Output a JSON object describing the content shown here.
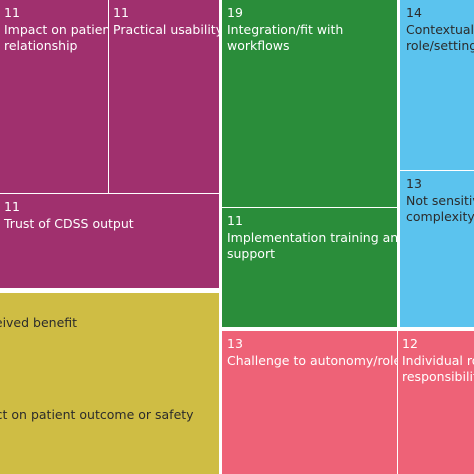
{
  "chart_data": {
    "type": "treemap",
    "title": "",
    "colors": {
      "magenta": "#A0306E",
      "green": "#2A8D3A",
      "sky": "#5BC3EE",
      "olive": "#CFBD44",
      "pink": "#EE6277"
    },
    "tiles": [
      {
        "count": "11",
        "label": "Impact on patient\nrelationship",
        "color": "#A0306E",
        "text": "light"
      },
      {
        "count": "11",
        "label": "Practical usability",
        "color": "#A0306E",
        "text": "light"
      },
      {
        "count": "11",
        "label": "Trust of CDSS output",
        "color": "#A0306E",
        "text": "light"
      },
      {
        "count": "19",
        "label": "Integration/fit with\nworkflows",
        "color": "#2A8D3A",
        "text": "light"
      },
      {
        "count": "11",
        "label": "Implementation training and\nsupport",
        "color": "#2A8D3A",
        "text": "light"
      },
      {
        "count": "14",
        "label": "Contextual f\nrole/setting",
        "color": "#5BC3EE",
        "text": "dark"
      },
      {
        "count": "13",
        "label": "Not sensitiv\ncomplexity",
        "color": "#5BC3EE",
        "text": "dark"
      },
      {
        "count": "",
        "label": "ceived benefit",
        "color": "#CFBD44",
        "text": "dark"
      },
      {
        "count": "",
        "label": "act on patient outcome or safety",
        "color": "#CFBD44",
        "text": "dark"
      },
      {
        "count": "13",
        "label": "Challenge to autonomy/role",
        "color": "#EE6277",
        "text": "light"
      },
      {
        "count": "12",
        "label": "Individual ro\nresponsibility",
        "color": "#EE6277",
        "text": "light"
      }
    ]
  }
}
